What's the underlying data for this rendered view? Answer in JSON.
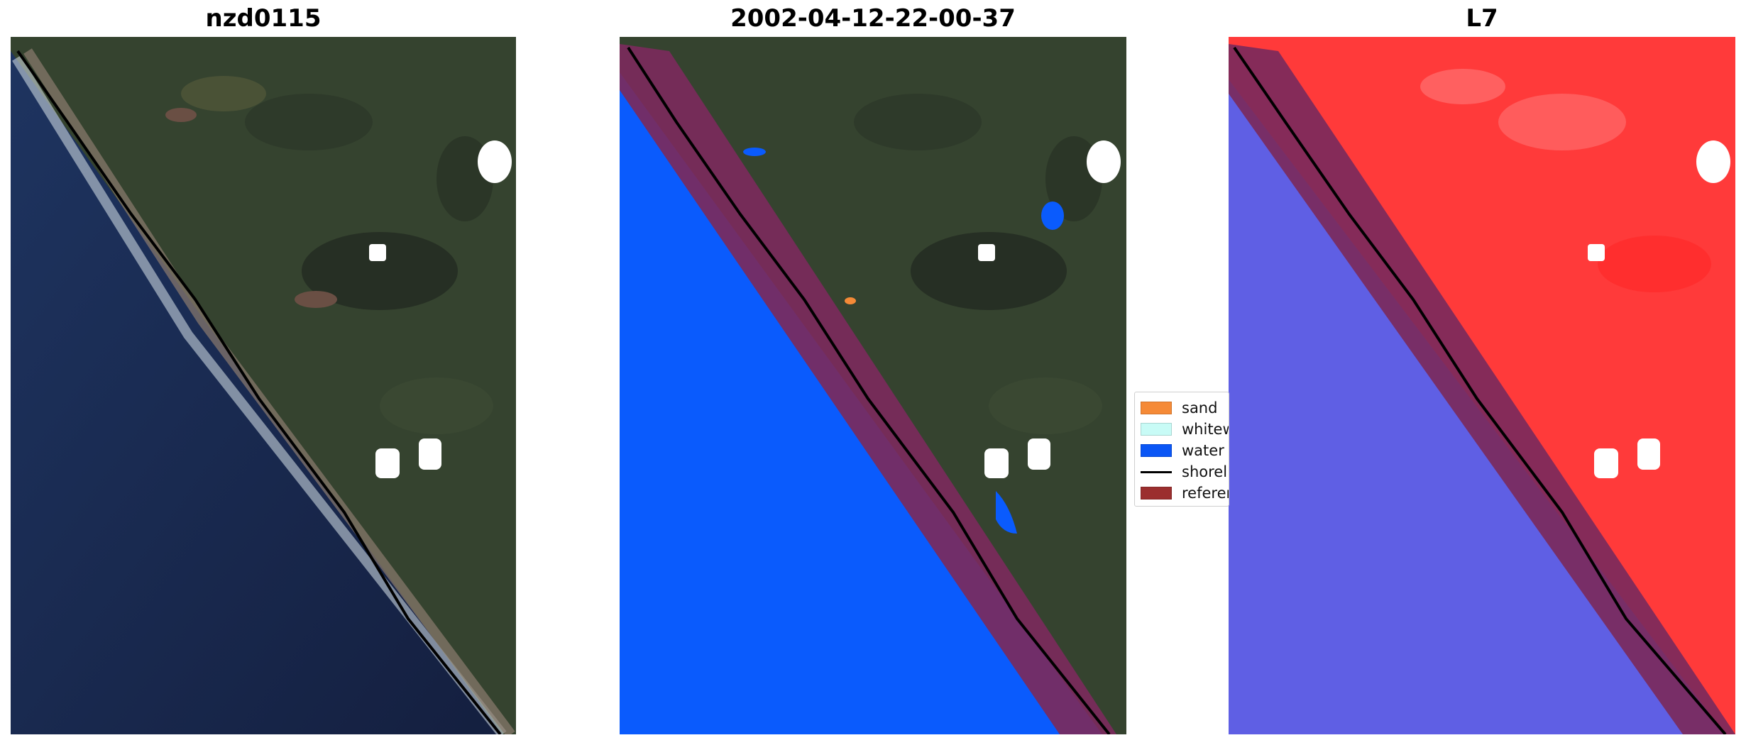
{
  "panels": [
    {
      "title": "nzd0115"
    },
    {
      "title": "2002-04-12-22-00-37"
    },
    {
      "title": "L7"
    }
  ],
  "legend": {
    "items": [
      {
        "label": "sand",
        "color": "#f58a37"
      },
      {
        "label": "whitew",
        "color": "#c8fbf6"
      },
      {
        "label": "water",
        "color": "#0a56f5"
      },
      {
        "label": "shorel",
        "color": "#000000"
      },
      {
        "label": "referen",
        "color": "#9b2e2e"
      }
    ]
  },
  "colors": {
    "land": "#34402f",
    "ocean": "#192749",
    "water_class": "#0a5bfd",
    "reference_band": "#7b2a5c",
    "land_nir": "#ff3a3a",
    "ocean_nir": "#5a59e0"
  }
}
